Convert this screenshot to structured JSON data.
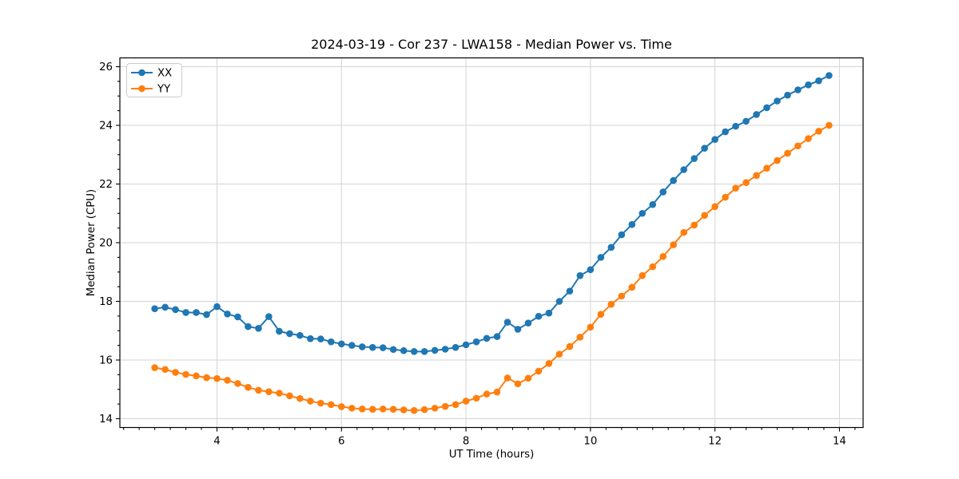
{
  "chart_data": {
    "type": "line",
    "title": "2024-03-19 - Cor 237 - LWA158 - Median Power vs. Time",
    "xlabel": "UT Time (hours)",
    "ylabel": "Median Power (CPU)",
    "xlim": [
      2.44,
      14.38
    ],
    "ylim": [
      13.7,
      26.3
    ],
    "xticks": [
      4,
      6,
      8,
      10,
      12,
      14
    ],
    "yticks": [
      14,
      16,
      18,
      20,
      22,
      24,
      26
    ],
    "x_minor_step": 0.25,
    "y_minor_step": 0.5,
    "grid": "major-both",
    "legend_position": "upper-left",
    "marker": "circle",
    "x": [
      3.0,
      3.167,
      3.333,
      3.5,
      3.667,
      3.833,
      4.0,
      4.167,
      4.333,
      4.5,
      4.667,
      4.833,
      5.0,
      5.167,
      5.333,
      5.5,
      5.667,
      5.833,
      6.0,
      6.167,
      6.333,
      6.5,
      6.667,
      6.833,
      7.0,
      7.167,
      7.333,
      7.5,
      7.667,
      7.833,
      8.0,
      8.167,
      8.333,
      8.5,
      8.667,
      8.833,
      9.0,
      9.167,
      9.333,
      9.5,
      9.667,
      9.833,
      10.0,
      10.167,
      10.333,
      10.5,
      10.667,
      10.833,
      11.0,
      11.167,
      11.333,
      11.5,
      11.667,
      11.833,
      12.0,
      12.167,
      12.333,
      12.5,
      12.667,
      12.833,
      13.0,
      13.167,
      13.333,
      13.5,
      13.667,
      13.833
    ],
    "series": [
      {
        "name": "XX",
        "color": "#1f77b4",
        "values": [
          17.75,
          17.8,
          17.72,
          17.62,
          17.62,
          17.55,
          17.82,
          17.57,
          17.47,
          17.14,
          17.08,
          17.48,
          16.98,
          16.9,
          16.84,
          16.73,
          16.72,
          16.62,
          16.55,
          16.5,
          16.45,
          16.43,
          16.42,
          16.36,
          16.32,
          16.29,
          16.29,
          16.33,
          16.37,
          16.43,
          16.52,
          16.62,
          16.74,
          16.8,
          17.29,
          17.05,
          17.26,
          17.49,
          17.6,
          18.0,
          18.35,
          18.88,
          19.08,
          19.5,
          19.84,
          20.27,
          20.62,
          21.0,
          21.3,
          21.73,
          22.12,
          22.49,
          22.87,
          23.22,
          23.52,
          23.78,
          23.97,
          24.14,
          24.37,
          24.6,
          24.83,
          25.03,
          25.21,
          25.38,
          25.52,
          25.7
        ]
      },
      {
        "name": "YY",
        "color": "#ff7f0e",
        "values": [
          15.74,
          15.68,
          15.58,
          15.51,
          15.46,
          15.4,
          15.37,
          15.31,
          15.2,
          15.07,
          14.97,
          14.92,
          14.87,
          14.78,
          14.69,
          14.6,
          14.53,
          14.48,
          14.41,
          14.36,
          14.33,
          14.32,
          14.33,
          14.32,
          14.3,
          14.28,
          14.31,
          14.36,
          14.42,
          14.48,
          14.6,
          14.7,
          14.84,
          14.91,
          15.39,
          15.19,
          15.38,
          15.62,
          15.88,
          16.2,
          16.46,
          16.78,
          17.12,
          17.56,
          17.9,
          18.18,
          18.48,
          18.88,
          19.18,
          19.53,
          19.93,
          20.35,
          20.6,
          20.93,
          21.23,
          21.55,
          21.86,
          22.05,
          22.29,
          22.54,
          22.8,
          23.05,
          23.3,
          23.55,
          23.8,
          24.0
        ]
      }
    ]
  }
}
